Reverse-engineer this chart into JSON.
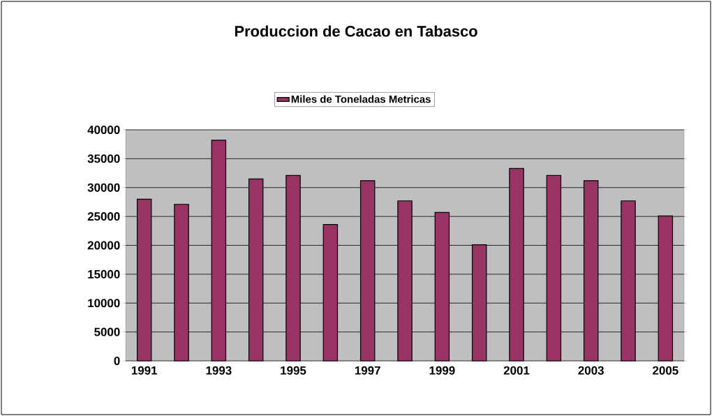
{
  "chart_data": {
    "type": "bar",
    "title": "Produccion de Cacao en Tabasco",
    "categories": [
      "1991",
      null,
      "1993",
      null,
      "1995",
      null,
      "1997",
      null,
      "1999",
      null,
      "2001",
      null,
      "2003",
      null,
      "2005"
    ],
    "series": [
      {
        "name": "Miles de Toneladas Metricas",
        "color": "#993366",
        "values": [
          28000,
          27100,
          38200,
          31500,
          32100,
          23600,
          31200,
          27700,
          25700,
          20100,
          33300,
          32100,
          31200,
          27700,
          25100
        ]
      }
    ],
    "ylim": [
      0,
      40000
    ],
    "yticks": [
      0,
      5000,
      10000,
      15000,
      20000,
      25000,
      30000,
      35000,
      40000
    ],
    "grid": "y",
    "legend": "top"
  }
}
